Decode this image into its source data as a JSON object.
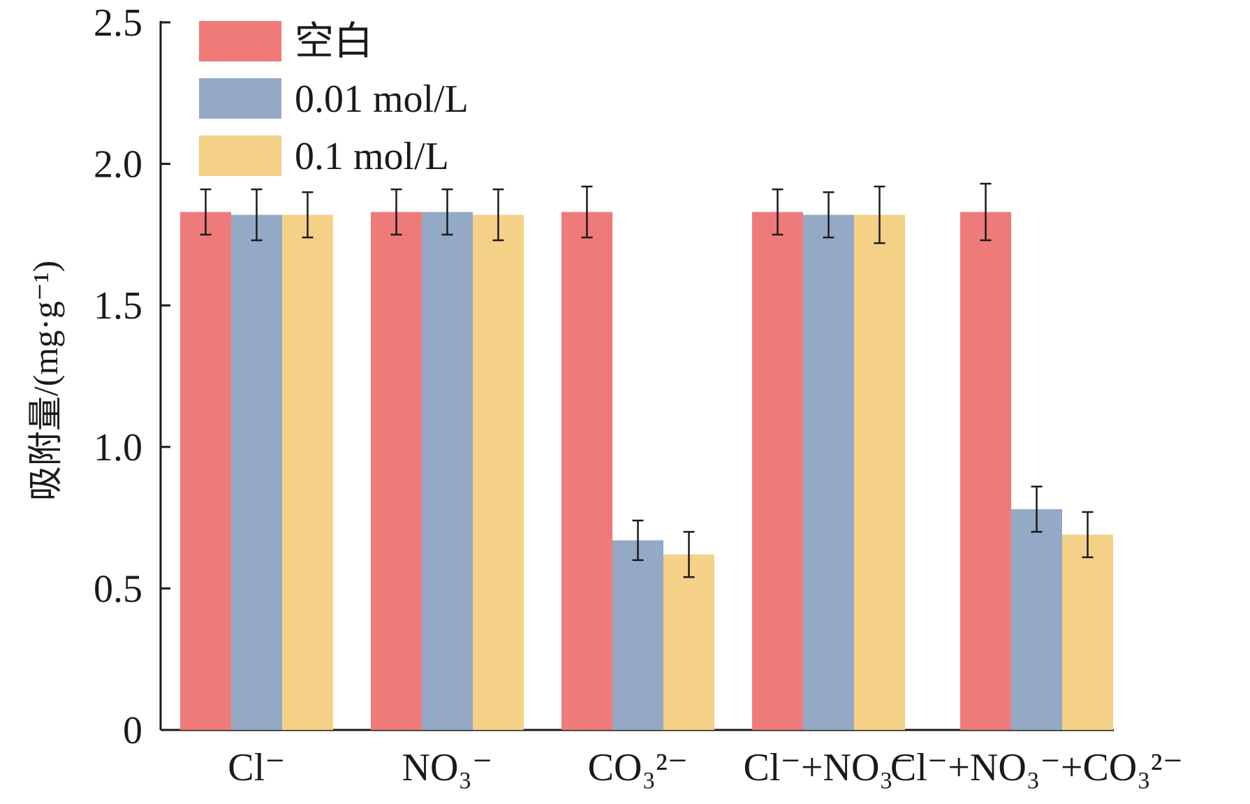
{
  "chart_data": {
    "type": "bar",
    "categories": [
      "Cl⁻",
      "NO₃⁻",
      "CO₃²⁻",
      "Cl⁻+NO₃⁻",
      "Cl⁻+NO₃⁻+CO₃²⁻"
    ],
    "series": [
      {
        "name": "空白",
        "color": "#ee7b79",
        "values": [
          1.83,
          1.83,
          1.83,
          1.83,
          1.83
        ],
        "errors": [
          0.08,
          0.08,
          0.09,
          0.08,
          0.1
        ]
      },
      {
        "name": "0.01 mol/L",
        "color": "#94a9c6",
        "values": [
          1.82,
          1.83,
          0.67,
          1.82,
          0.78
        ],
        "errors": [
          0.09,
          0.08,
          0.07,
          0.08,
          0.08
        ]
      },
      {
        "name": "0.1 mol/L",
        "color": "#f5d087",
        "values": [
          1.82,
          1.82,
          0.62,
          1.82,
          0.69
        ],
        "errors": [
          0.08,
          0.09,
          0.08,
          0.1,
          0.08
        ]
      }
    ],
    "ylabel": "吸附量/(mg·g⁻¹)",
    "xlabel": "",
    "ylim": [
      0,
      2.5
    ],
    "yticks": [
      "0",
      "0.5",
      "1.0",
      "1.5",
      "2.0",
      "2.5"
    ],
    "grid": false,
    "legend_position": "top-left"
  }
}
